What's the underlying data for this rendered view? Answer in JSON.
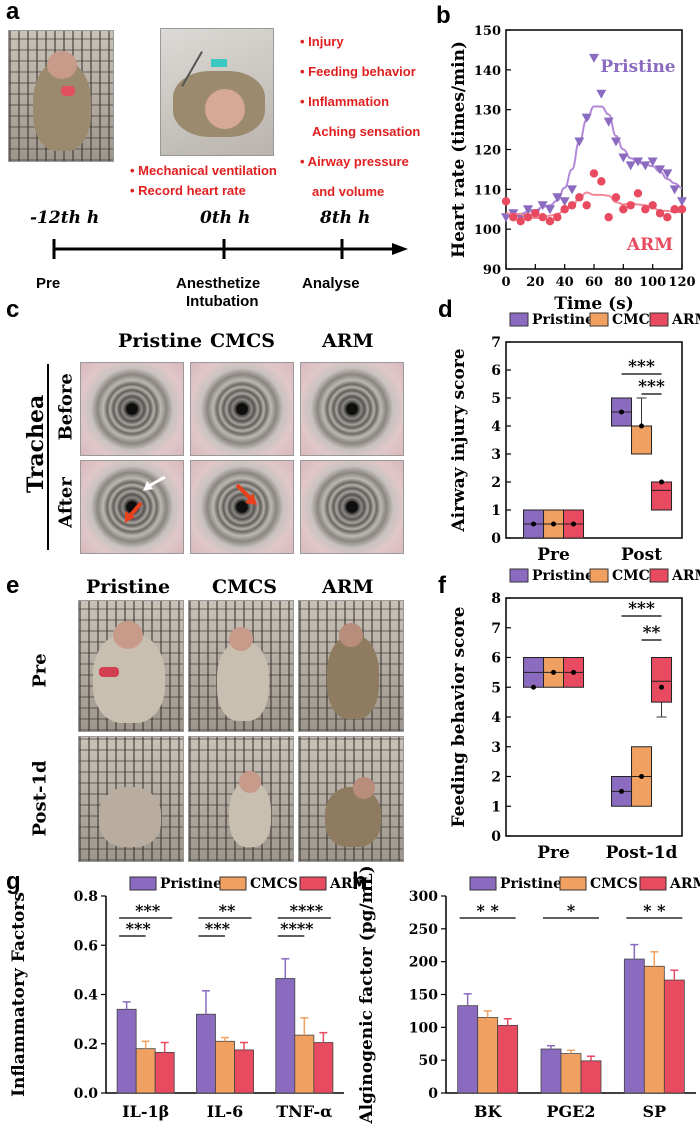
{
  "panels": [
    "a",
    "b",
    "c",
    "d",
    "e",
    "f",
    "g",
    "h"
  ],
  "panel_a": {
    "photo_labels": [
      "• Mechanical ventilation",
      "• Record heart rate"
    ],
    "list": [
      "• Injury",
      "• Feeding behavior",
      "• Inflammation",
      "Aching sensation",
      "• Airway pressure",
      "and volume"
    ],
    "timeline": {
      "times": [
        "-12th h",
        "0th h",
        "8th h"
      ],
      "labels": [
        "Pre",
        "Anesthetize",
        "Intubation",
        "Analyse"
      ]
    }
  },
  "panel_c": {
    "columns": [
      "Pristine",
      "CMCS",
      "ARM"
    ],
    "rows": [
      "Before",
      "After"
    ],
    "group": "Trachea"
  },
  "panel_e": {
    "columns": [
      "Pristine",
      "CMCS",
      "ARM"
    ],
    "rows": [
      "Pre",
      "Post-1d"
    ]
  },
  "colors": {
    "pristine": "#8b6bbf",
    "cmcs": "#f0a060",
    "arm": "#e84a5f",
    "pristine_line": "#b38ad8",
    "arm_line": "#f08a98",
    "red_text": "#e02020"
  },
  "chart_data": [
    {
      "id": "b",
      "type": "scatter",
      "xlabel": "Time (s)",
      "ylabel": "Heart rate (times/min)",
      "xlim": [
        0,
        120
      ],
      "ylim": [
        90,
        150
      ],
      "xticks": [
        "0",
        "20",
        "40",
        "60",
        "80",
        "100",
        "120"
      ],
      "yticks": [
        "90",
        "100",
        "110",
        "120",
        "130",
        "140",
        "150"
      ],
      "series": [
        {
          "name": "Pristine",
          "marker": "triangle-down",
          "x": [
            0,
            5,
            10,
            15,
            20,
            25,
            30,
            35,
            40,
            45,
            50,
            55,
            60,
            65,
            70,
            75,
            80,
            85,
            90,
            95,
            100,
            105,
            110,
            115,
            120
          ],
          "y": [
            103,
            104,
            103,
            105,
            104,
            106,
            105,
            108,
            107,
            110,
            122,
            128,
            143,
            134,
            127,
            122,
            118,
            116,
            117,
            116,
            117,
            115,
            114,
            110,
            107
          ]
        },
        {
          "name": "ARM",
          "marker": "circle",
          "x": [
            0,
            5,
            10,
            15,
            20,
            25,
            30,
            35,
            40,
            45,
            50,
            55,
            60,
            65,
            70,
            75,
            80,
            85,
            90,
            95,
            100,
            105,
            110,
            115,
            120
          ],
          "y": [
            107,
            103,
            102,
            103,
            104,
            103,
            102,
            103,
            105,
            106,
            108,
            106,
            114,
            112,
            103,
            108,
            105,
            106,
            109,
            105,
            106,
            104,
            103,
            105,
            105
          ]
        }
      ],
      "legend": [
        "Pristine",
        "ARM"
      ]
    },
    {
      "id": "d",
      "type": "box",
      "ylabel": "Airway injury score",
      "ylim": [
        0,
        7
      ],
      "yticks": [
        "0",
        "1",
        "2",
        "3",
        "4",
        "5",
        "6",
        "7"
      ],
      "categories": [
        "Pre",
        "Post"
      ],
      "legend": [
        "Pristine",
        "CMCS",
        "ARM"
      ],
      "series": [
        {
          "name": "Pristine",
          "boxes": [
            {
              "q1": 0,
              "median": 0.5,
              "q3": 1,
              "mean": 0.5
            },
            {
              "q1": 4,
              "median": 4.5,
              "q3": 5,
              "mean": 4.5
            }
          ]
        },
        {
          "name": "CMCS",
          "boxes": [
            {
              "q1": 0,
              "median": 0.5,
              "q3": 1,
              "mean": 0.5
            },
            {
              "q1": 3,
              "median": 4,
              "q3": 4,
              "mean": 4,
              "whisker_high": 5
            }
          ]
        },
        {
          "name": "ARM",
          "boxes": [
            {
              "q1": 0,
              "median": 0.5,
              "q3": 1,
              "mean": 0.5
            },
            {
              "q1": 1,
              "median": 1.7,
              "q3": 2,
              "mean": 2
            }
          ]
        }
      ],
      "significance": [
        "***",
        "***"
      ]
    },
    {
      "id": "f",
      "type": "box",
      "ylabel": "Feeding behavior score",
      "ylim": [
        0,
        8
      ],
      "yticks": [
        "0",
        "1",
        "2",
        "3",
        "4",
        "5",
        "6",
        "7",
        "8"
      ],
      "categories": [
        "Pre",
        "Post-1d"
      ],
      "legend": [
        "Pristine",
        "CMCS",
        "ARM"
      ],
      "series": [
        {
          "name": "Pristine",
          "boxes": [
            {
              "q1": 5,
              "median": 5.5,
              "q3": 6,
              "mean": 5
            },
            {
              "q1": 1,
              "median": 1.5,
              "q3": 2,
              "mean": 1.5
            }
          ]
        },
        {
          "name": "CMCS",
          "boxes": [
            {
              "q1": 5,
              "median": 5.5,
              "q3": 6,
              "mean": 5.5
            },
            {
              "q1": 1,
              "median": 2,
              "q3": 3,
              "mean": 2
            }
          ]
        },
        {
          "name": "ARM",
          "boxes": [
            {
              "q1": 5,
              "median": 5.5,
              "q3": 6,
              "mean": 5.5
            },
            {
              "q1": 4.5,
              "median": 5.2,
              "q3": 6,
              "mean": 5,
              "whisker_low": 4
            }
          ]
        }
      ],
      "significance": [
        "***",
        "**"
      ]
    },
    {
      "id": "g",
      "type": "bar",
      "ylabel": "Inflammatory Factors",
      "ylim": [
        0,
        0.8
      ],
      "yticks": [
        "0.0",
        "0.2",
        "0.4",
        "0.6",
        "0.8"
      ],
      "categories": [
        "IL-1β",
        "IL-6",
        "TNF-α"
      ],
      "legend": [
        "Pristine",
        "CMCS",
        "ARM"
      ],
      "series": [
        {
          "name": "Pristine",
          "values": [
            0.34,
            0.32,
            0.465
          ],
          "errors": [
            0.03,
            0.095,
            0.08
          ]
        },
        {
          "name": "CMCS",
          "values": [
            0.18,
            0.21,
            0.235
          ],
          "errors": [
            0.03,
            0.015,
            0.07
          ]
        },
        {
          "name": "ARM",
          "values": [
            0.165,
            0.175,
            0.205
          ],
          "errors": [
            0.04,
            0.03,
            0.04
          ]
        }
      ],
      "significance": [
        [
          "***",
          "***"
        ],
        [
          "**",
          "***"
        ],
        [
          "****",
          "****"
        ]
      ]
    },
    {
      "id": "h",
      "type": "bar",
      "ylabel": "Alginogenic factor (pg/mL)",
      "ylim": [
        0,
        300
      ],
      "yticks": [
        "0",
        "50",
        "100",
        "150",
        "200",
        "250",
        "300"
      ],
      "categories": [
        "BK",
        "PGE2",
        "SP"
      ],
      "legend": [
        "Pristine",
        "CMCS",
        "ARM"
      ],
      "series": [
        {
          "name": "Pristine",
          "values": [
            133,
            67,
            204
          ],
          "errors": [
            18,
            5,
            22
          ]
        },
        {
          "name": "CMCS",
          "values": [
            115,
            60,
            193
          ],
          "errors": [
            10,
            5,
            22
          ]
        },
        {
          "name": "ARM",
          "values": [
            103,
            49,
            172
          ],
          "errors": [
            10,
            7,
            15
          ]
        }
      ],
      "significance": [
        "* *",
        "*",
        "* *"
      ]
    }
  ]
}
